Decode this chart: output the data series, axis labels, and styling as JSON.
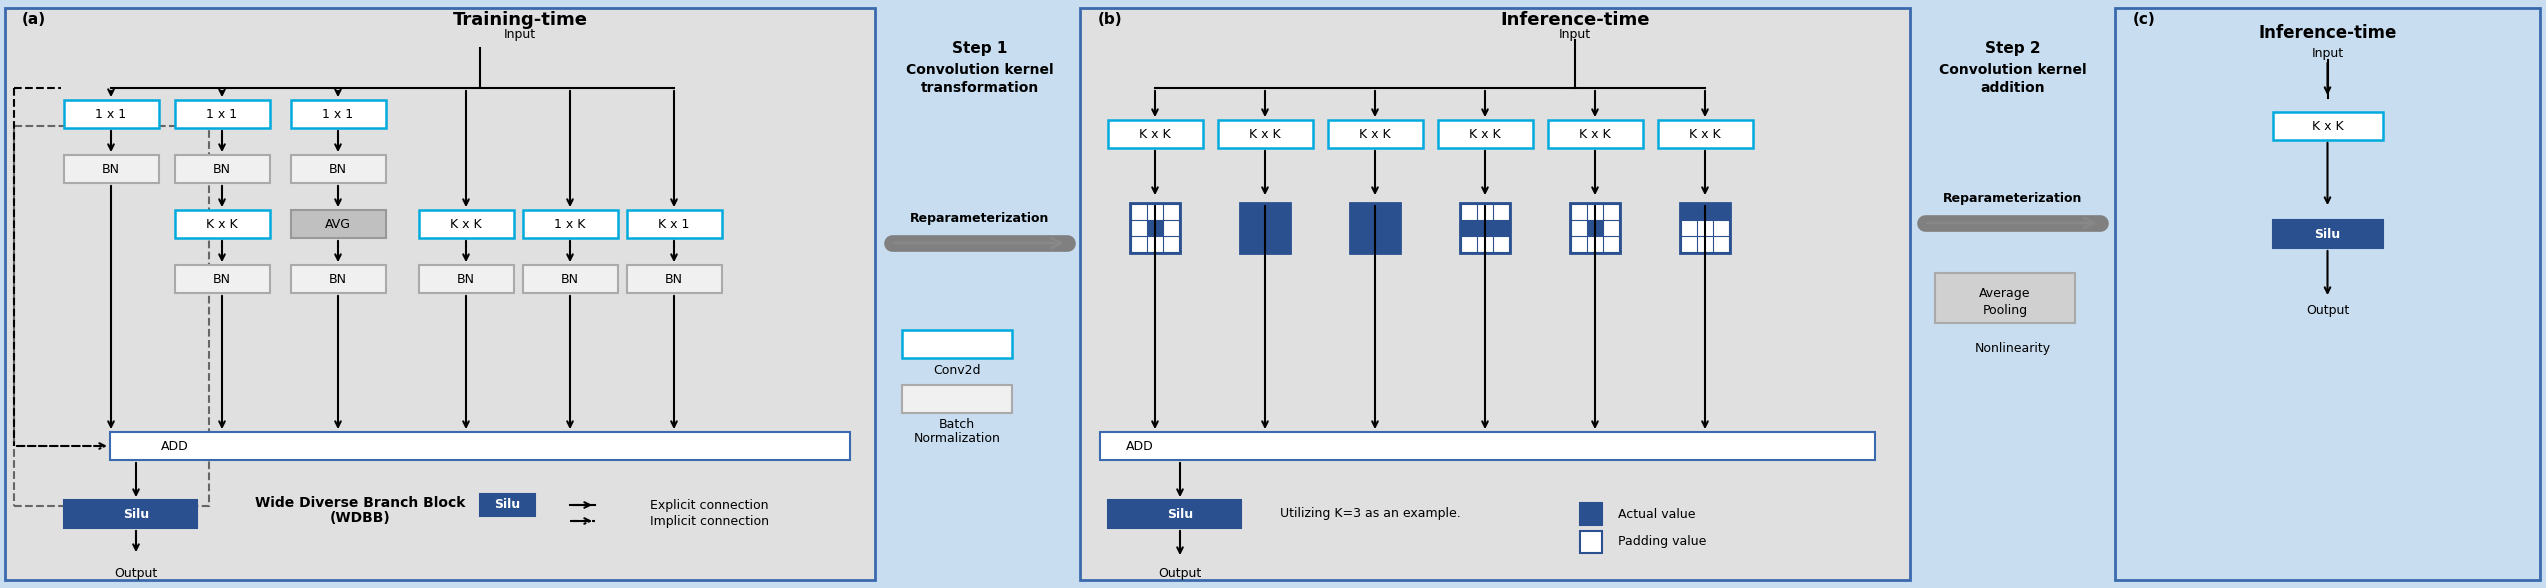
{
  "fig_width": 25.46,
  "fig_height": 5.88,
  "bg_outer": "#ddeeff",
  "bg_panel_a": "#e8e8e8",
  "bg_panel_b": "#e8e8e8",
  "bg_panel_step1": "#ddeeff",
  "bg_panel_step2": "#ddeeff",
  "bg_panel_c": "#ddeeff",
  "color_conv": "#ffffff",
  "color_conv_border": "#00aaee",
  "color_bn": "#f0f0f0",
  "color_bn_border": "#aaaaaa",
  "color_avg": "#c8c8c8",
  "color_avg_border": "#aaaaaa",
  "color_add": "#ffffff",
  "color_add_border": "#3366aa",
  "color_silu": "#2255aa",
  "color_silu_text": "#ffffff",
  "color_kxk_filled": "#2255aa",
  "color_kxk_outline": "#2255aa",
  "title_a": "Training-time",
  "title_b": "Inference-time",
  "title_c": "Inference-time"
}
